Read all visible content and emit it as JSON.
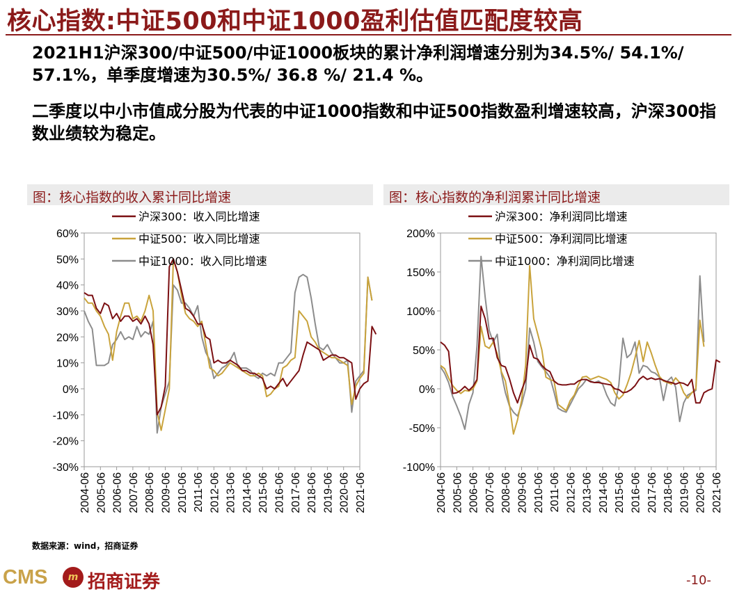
{
  "title": "核心指数:中证500和中证1000盈利估值匹配度较高",
  "paragraphs": [
    "2021H1沪深300/中证500/中证1000板块的累计净利润增速分别为34.5%/ 54.1%/ 57.1%，单季度增速为30.5%/ 36.8 %/ 21.4 %。",
    "二季度以中小市值成分股为代表的中证1000指数和中证500指数盈利增速较高，沪深300指数业绩较为稳定。"
  ],
  "source": "数据来源：wind，招商证券",
  "footer": {
    "logo_text": "CMS",
    "logo_mark": "m",
    "logo_cn": "招商证券",
    "page": "-10-"
  },
  "colors": {
    "hs300": "#7B0F12",
    "zz500": "#C9A33B",
    "zz1000": "#8C8C8C",
    "accent": "#8B1A1A"
  },
  "chart_data": [
    {
      "type": "line",
      "title": "图：核心指数的收入累计同比增速",
      "ylim": [
        -30,
        60
      ],
      "yticks": [
        "60%",
        "50%",
        "40%",
        "30%",
        "20%",
        "10%",
        "0%",
        "-10%",
        "-20%",
        "-30%"
      ],
      "ytick_values": [
        60,
        50,
        40,
        30,
        20,
        10,
        0,
        -10,
        -20,
        -30
      ],
      "xticks": [
        "2004-06",
        "2005-06",
        "2006-06",
        "2007-06",
        "2008-06",
        "2009-06",
        "2010-06",
        "2011-06",
        "2012-06",
        "2013-06",
        "2014-06",
        "2015-06",
        "2016-06",
        "2017-06",
        "2018-06",
        "2019-06",
        "2020-06",
        "2021-06"
      ],
      "x_start": "2004-06",
      "x_end": "2021-06",
      "x_step": "quarter",
      "legend_position": "top-left",
      "series": [
        {
          "name": "沪深300：收入同比增速",
          "values": [
            37,
            36,
            36,
            31,
            29,
            33,
            32,
            27,
            29,
            26,
            28,
            28,
            26,
            27,
            25,
            28,
            25,
            17,
            -10,
            -7,
            1,
            47,
            50,
            45,
            38,
            31,
            30,
            28,
            25,
            25,
            20,
            19,
            10,
            11,
            10,
            10,
            11,
            10,
            9,
            7,
            7,
            6,
            6,
            5,
            4,
            0,
            1,
            0,
            2,
            4,
            1,
            3,
            5,
            7,
            13,
            18,
            17,
            16,
            15,
            11,
            12,
            13,
            13,
            12,
            12,
            11,
            10,
            -4,
            0,
            2,
            3,
            24,
            21
          ]
        },
        {
          "name": "中证500：收入同比增速",
          "values": [
            35,
            33,
            33,
            30,
            28,
            24,
            21,
            11,
            22,
            28,
            33,
            33,
            27,
            28,
            26,
            30,
            36,
            30,
            -9,
            -16,
            -8,
            0,
            50,
            45,
            36,
            29,
            27,
            26,
            24,
            26,
            17,
            8,
            7,
            5,
            6,
            8,
            10,
            9,
            8,
            7,
            6,
            5,
            5,
            6,
            5,
            -3,
            -2,
            0,
            1,
            8,
            9,
            11,
            12,
            30,
            28,
            26,
            20,
            18,
            15,
            14,
            13,
            12,
            12,
            11,
            10,
            9,
            -6,
            1,
            4,
            6,
            43,
            34
          ]
        },
        {
          "name": "中证1000：收入同比增速",
          "values": [
            30,
            26,
            23,
            9,
            9,
            9,
            10,
            17,
            19,
            22,
            19,
            20,
            19,
            24,
            20,
            22,
            21,
            26,
            -17,
            -7,
            -2,
            3,
            40,
            38,
            33,
            33,
            31,
            28,
            32,
            20,
            14,
            11,
            4,
            6,
            8,
            9,
            11,
            14,
            8,
            8,
            8,
            7,
            5,
            4,
            6,
            5,
            6,
            5,
            10,
            10,
            12,
            14,
            37,
            43,
            44,
            43,
            35,
            25,
            16,
            15,
            17,
            14,
            12,
            10,
            10,
            11,
            -9,
            3,
            5,
            7,
            43,
            34
          ]
        }
      ]
    },
    {
      "type": "line",
      "title": "图：核心指数的净利润累计同比增速",
      "ylim": [
        -100,
        200
      ],
      "yticks": [
        "200%",
        "150%",
        "100%",
        "50%",
        "0%",
        "-50%",
        "-100%"
      ],
      "ytick_values": [
        200,
        150,
        100,
        50,
        0,
        -50,
        -100
      ],
      "xticks": [
        "2004-06",
        "2005-06",
        "2006-06",
        "2007-06",
        "2008-06",
        "2009-06",
        "2010-06",
        "2011-06",
        "2012-06",
        "2013-06",
        "2014-06",
        "2015-06",
        "2016-06",
        "2017-06",
        "2018-06",
        "2019-06",
        "2020-06",
        "2021-06"
      ],
      "x_start": "2004-06",
      "x_end": "2021-06",
      "x_step": "quarter",
      "legend_position": "top-left",
      "series": [
        {
          "name": "沪深300：净利润同比增速",
          "values": [
            60,
            56,
            48,
            -6,
            -5,
            -2,
            3,
            -2,
            3,
            12,
            106,
            90,
            64,
            65,
            40,
            30,
            28,
            13,
            -5,
            -18,
            -2,
            12,
            56,
            40,
            38,
            30,
            25,
            22,
            10,
            6,
            5,
            5,
            6,
            6,
            10,
            12,
            12,
            9,
            8,
            8,
            7,
            6,
            5,
            0,
            -1,
            -5,
            -4,
            -1,
            4,
            12,
            16,
            12,
            14,
            12,
            13,
            11,
            9,
            8,
            6,
            8,
            7,
            4,
            12,
            -18,
            -18,
            -5,
            -2,
            0,
            37,
            34
          ]
        },
        {
          "name": "中证500：净利润同比增速",
          "values": [
            30,
            26,
            14,
            4,
            -2,
            -6,
            -2,
            -3,
            0,
            10,
            80,
            55,
            52,
            60,
            45,
            22,
            10,
            -20,
            -58,
            -40,
            -15,
            30,
            158,
            90,
            70,
            50,
            15,
            12,
            10,
            -20,
            -24,
            -28,
            -15,
            -8,
            5,
            15,
            16,
            12,
            14,
            16,
            14,
            12,
            8,
            -5,
            -13,
            -8,
            5,
            20,
            40,
            62,
            35,
            60,
            46,
            30,
            16,
            10,
            8,
            6,
            14,
            8,
            -5,
            -12,
            -5,
            0,
            88,
            54
          ]
        },
        {
          "name": "中证1000：净利润同比增速",
          "values": [
            28,
            20,
            8,
            -10,
            -22,
            -35,
            -52,
            -20,
            -5,
            55,
            170,
            118,
            75,
            60,
            70,
            20,
            -5,
            -22,
            -30,
            -35,
            -20,
            0,
            78,
            60,
            35,
            28,
            22,
            15,
            -4,
            -25,
            -28,
            -30,
            -20,
            -10,
            0,
            5,
            12,
            10,
            8,
            10,
            6,
            -8,
            -18,
            -22,
            5,
            65,
            40,
            45,
            60,
            20,
            30,
            28,
            22,
            20,
            15,
            -15,
            10,
            15,
            2,
            -42,
            -18,
            -8,
            -5,
            -2,
            145,
            60
          ]
        }
      ]
    }
  ]
}
